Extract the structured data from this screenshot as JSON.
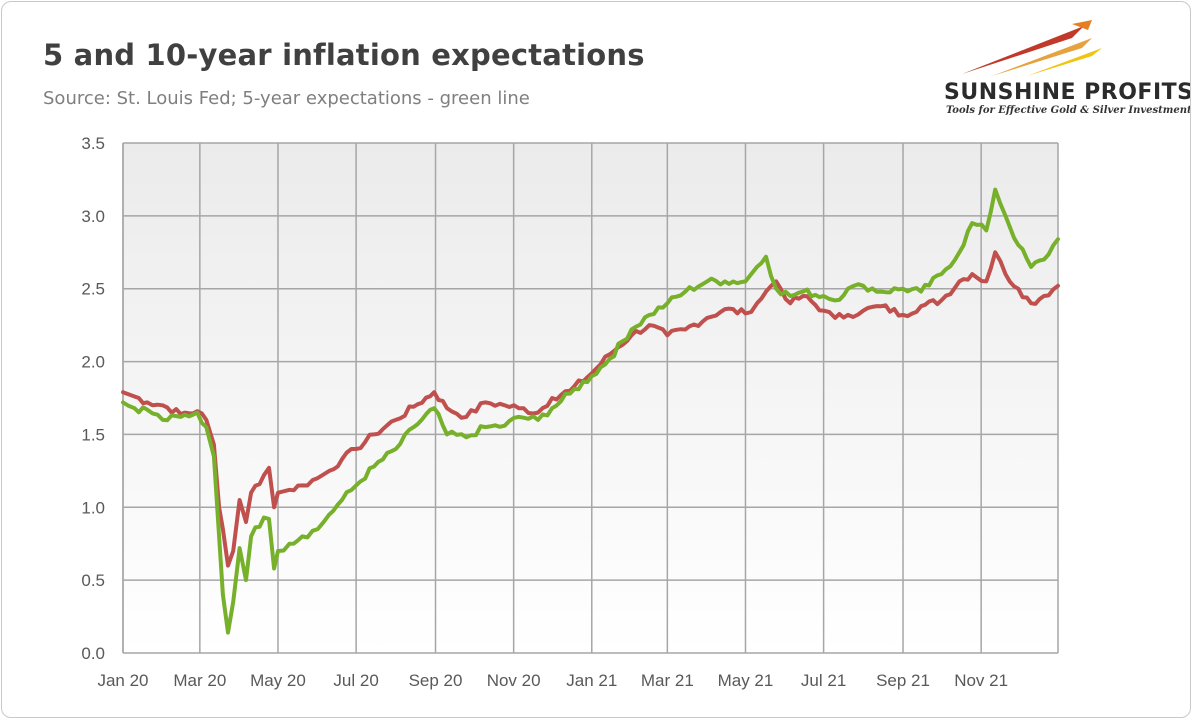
{
  "header": {
    "title": "5 and 10-year inflation expectations",
    "subtitle": "Source: St. Louis Fed; 5-year expectations - green line"
  },
  "logo": {
    "name": "SUNSHINE PROFITS",
    "tagline": "Tools for Effective Gold & Silver Investments",
    "colors": [
      "#c0392b",
      "#e6a23c",
      "#f1c40f"
    ]
  },
  "chart_data": {
    "type": "line",
    "ylim": [
      0,
      3.5
    ],
    "yticks": [
      "0.0",
      "0.5",
      "1.0",
      "1.5",
      "2.0",
      "2.5",
      "3.0",
      "3.5"
    ],
    "xlim": [
      "2020-01-01",
      "2021-12-31"
    ],
    "xticks": [
      {
        "date": "2020-01-01",
        "label": "Jan 20"
      },
      {
        "date": "2020-03-01",
        "label": "Mar 20"
      },
      {
        "date": "2020-05-01",
        "label": "May 20"
      },
      {
        "date": "2020-07-01",
        "label": "Jul 20"
      },
      {
        "date": "2020-09-01",
        "label": "Sep 20"
      },
      {
        "date": "2020-11-01",
        "label": "Nov 20"
      },
      {
        "date": "2021-01-01",
        "label": "Jan 21"
      },
      {
        "date": "2021-03-01",
        "label": "Mar 21"
      },
      {
        "date": "2021-05-01",
        "label": "May 21"
      },
      {
        "date": "2021-07-01",
        "label": "Jul 21"
      },
      {
        "date": "2021-09-01",
        "label": "Sep 21"
      },
      {
        "date": "2021-11-01",
        "label": "Nov 21"
      }
    ],
    "grid": true,
    "series": [
      {
        "color": "#c0504d",
        "x": [
          "2020-01-01",
          "2020-01-10",
          "2020-01-20",
          "2020-02-01",
          "2020-02-15",
          "2020-02-28",
          "2020-03-06",
          "2020-03-12",
          "2020-03-16",
          "2020-03-19",
          "2020-03-23",
          "2020-03-27",
          "2020-04-01",
          "2020-04-06",
          "2020-04-10",
          "2020-04-20",
          "2020-04-24",
          "2020-04-28",
          "2020-05-01",
          "2020-05-10",
          "2020-05-20",
          "2020-06-01",
          "2020-06-10",
          "2020-06-20",
          "2020-07-01",
          "2020-07-15",
          "2020-08-01",
          "2020-08-15",
          "2020-08-31",
          "2020-09-10",
          "2020-09-25",
          "2020-10-10",
          "2020-10-25",
          "2020-11-05",
          "2020-11-20",
          "2020-12-01",
          "2020-12-15",
          "2021-01-01",
          "2021-01-15",
          "2021-02-01",
          "2021-02-15",
          "2021-03-01",
          "2021-03-15",
          "2021-04-01",
          "2021-04-15",
          "2021-05-01",
          "2021-05-10",
          "2021-05-17",
          "2021-05-25",
          "2021-06-05",
          "2021-06-15",
          "2021-07-01",
          "2021-07-10",
          "2021-07-20",
          "2021-08-01",
          "2021-08-15",
          "2021-09-01",
          "2021-09-15",
          "2021-10-01",
          "2021-10-15",
          "2021-10-25",
          "2021-11-05",
          "2021-11-12",
          "2021-11-20",
          "2021-11-30",
          "2021-12-10",
          "2021-12-20",
          "2021-12-31"
        ],
        "values": [
          1.79,
          1.76,
          1.72,
          1.7,
          1.64,
          1.66,
          1.6,
          1.43,
          1.0,
          0.85,
          0.6,
          0.7,
          1.05,
          0.9,
          1.1,
          1.22,
          1.27,
          1.0,
          1.1,
          1.12,
          1.15,
          1.2,
          1.25,
          1.33,
          1.4,
          1.5,
          1.6,
          1.69,
          1.79,
          1.68,
          1.62,
          1.72,
          1.7,
          1.68,
          1.65,
          1.75,
          1.8,
          1.92,
          2.05,
          2.18,
          2.25,
          2.18,
          2.22,
          2.3,
          2.36,
          2.33,
          2.4,
          2.48,
          2.55,
          2.4,
          2.45,
          2.35,
          2.3,
          2.32,
          2.35,
          2.38,
          2.32,
          2.38,
          2.42,
          2.55,
          2.6,
          2.55,
          2.75,
          2.6,
          2.5,
          2.4,
          2.45,
          2.52
        ]
      },
      {
        "color": "#77b02a",
        "x": [
          "2020-01-01",
          "2020-01-10",
          "2020-01-20",
          "2020-02-01",
          "2020-02-15",
          "2020-02-28",
          "2020-03-06",
          "2020-03-12",
          "2020-03-16",
          "2020-03-19",
          "2020-03-23",
          "2020-03-27",
          "2020-04-01",
          "2020-04-06",
          "2020-04-10",
          "2020-04-20",
          "2020-04-24",
          "2020-04-28",
          "2020-05-01",
          "2020-05-10",
          "2020-05-20",
          "2020-06-01",
          "2020-06-10",
          "2020-06-20",
          "2020-07-01",
          "2020-07-15",
          "2020-08-01",
          "2020-08-15",
          "2020-08-31",
          "2020-09-10",
          "2020-09-25",
          "2020-10-10",
          "2020-10-25",
          "2020-11-05",
          "2020-11-20",
          "2020-12-01",
          "2020-12-15",
          "2021-01-01",
          "2021-01-15",
          "2021-02-01",
          "2021-02-15",
          "2021-03-01",
          "2021-03-15",
          "2021-04-01",
          "2021-04-15",
          "2021-05-01",
          "2021-05-10",
          "2021-05-17",
          "2021-05-25",
          "2021-06-05",
          "2021-06-15",
          "2021-07-01",
          "2021-07-10",
          "2021-07-20",
          "2021-08-01",
          "2021-08-15",
          "2021-09-01",
          "2021-09-15",
          "2021-10-01",
          "2021-10-15",
          "2021-10-25",
          "2021-11-05",
          "2021-11-12",
          "2021-11-20",
          "2021-11-30",
          "2021-12-10",
          "2021-12-20",
          "2021-12-31"
        ],
        "values": [
          1.72,
          1.68,
          1.67,
          1.6,
          1.62,
          1.65,
          1.55,
          1.35,
          0.8,
          0.4,
          0.14,
          0.35,
          0.72,
          0.5,
          0.8,
          0.93,
          0.92,
          0.58,
          0.7,
          0.75,
          0.8,
          0.85,
          0.95,
          1.05,
          1.15,
          1.28,
          1.4,
          1.55,
          1.68,
          1.5,
          1.48,
          1.55,
          1.56,
          1.62,
          1.6,
          1.68,
          1.78,
          1.9,
          2.02,
          2.22,
          2.32,
          2.4,
          2.48,
          2.55,
          2.55,
          2.55,
          2.65,
          2.72,
          2.5,
          2.45,
          2.48,
          2.45,
          2.42,
          2.5,
          2.52,
          2.48,
          2.5,
          2.48,
          2.6,
          2.75,
          2.95,
          2.9,
          3.18,
          3.0,
          2.8,
          2.65,
          2.7,
          2.84
        ]
      }
    ]
  }
}
